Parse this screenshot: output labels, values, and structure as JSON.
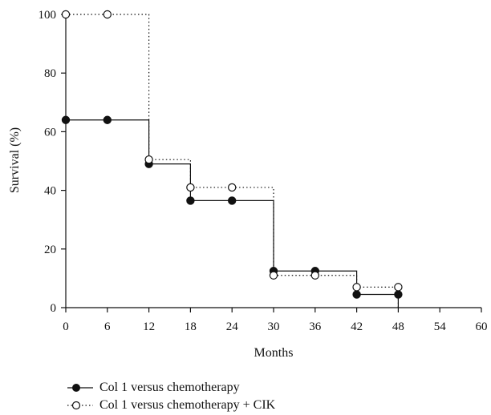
{
  "chart_data": {
    "type": "line",
    "step": true,
    "xlabel": "Months",
    "ylabel": "Survival (%)",
    "xlim": [
      0,
      60
    ],
    "ylim": [
      0,
      100
    ],
    "xticks": [
      0,
      6,
      12,
      18,
      24,
      30,
      36,
      42,
      48,
      54,
      60
    ],
    "yticks": [
      0,
      20,
      40,
      60,
      80,
      100
    ],
    "grid": false,
    "legend_position": "bottom-left",
    "series": [
      {
        "name": "Col 1 versus chemotherapy",
        "line_style": "solid",
        "marker": "filled-circle",
        "color": "#111111",
        "x": [
          0,
          6,
          12,
          18,
          24,
          30,
          36,
          42,
          48
        ],
        "y": [
          64,
          64,
          49,
          36.5,
          36.5,
          12.5,
          12.5,
          4.5,
          4.5
        ]
      },
      {
        "name": "Col 1 versus chemotherapy + CIK",
        "line_style": "dotted",
        "marker": "open-circle",
        "color": "#111111",
        "x": [
          0,
          6,
          12,
          18,
          24,
          30,
          36,
          42,
          48
        ],
        "y": [
          100,
          100,
          50.5,
          41,
          41,
          11,
          11,
          7,
          7
        ]
      }
    ]
  }
}
